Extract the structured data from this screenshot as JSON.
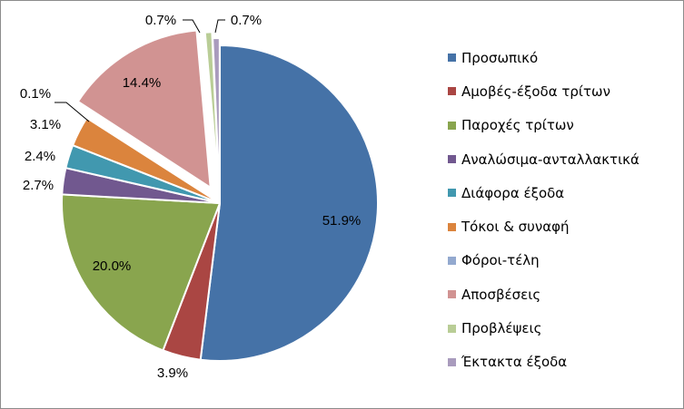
{
  "chart_data": {
    "type": "pie",
    "series": [
      {
        "name": "Προσωπικό",
        "value": 51.9,
        "label": "51.9%",
        "color": "#4572A7"
      },
      {
        "name": "Αμοβές-έξοδα τρίτων",
        "value": 3.9,
        "label": "3.9%",
        "color": "#AA4643"
      },
      {
        "name": "Παροχές τρίτων",
        "value": 20.0,
        "label": "20.0%",
        "color": "#89A54E"
      },
      {
        "name": "Αναλώσιμα-ανταλλακτικά",
        "value": 2.7,
        "label": "2.7%",
        "color": "#71588F"
      },
      {
        "name": "Διάφορα έξοδα",
        "value": 2.4,
        "label": "2.4%",
        "color": "#4198AF"
      },
      {
        "name": "Τόκοι & συναφή",
        "value": 3.1,
        "label": "3.1%",
        "color": "#DB843D"
      },
      {
        "name": "Φόροι-τέλη",
        "value": 0.1,
        "label": "0.1%",
        "color": "#93A9CF"
      },
      {
        "name": "Αποσβέσεις",
        "value": 14.4,
        "label": "14.4%",
        "color": "#D19392"
      },
      {
        "name": "Προβλέψεις",
        "value": 0.7,
        "label": "0.7%",
        "color": "#B9CD96"
      },
      {
        "name": "Έκτακτα έξοδα",
        "value": 0.7,
        "label": "0.7%",
        "color": "#A99BBD"
      }
    ],
    "exploded": [
      "Αποσβέσεις",
      "Προβλέψεις",
      "Έκτακτα έξοδα"
    ],
    "legend_position": "right"
  }
}
